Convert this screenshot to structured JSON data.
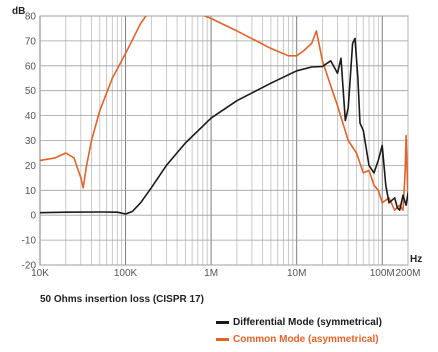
{
  "chart_data": {
    "type": "line",
    "title": "50 Ohms insertion loss (CISPR 17)",
    "ylabel": "dB",
    "xlabel": "Hz",
    "x_scale": "log",
    "xlim": [
      10000,
      200000000
    ],
    "ylim": [
      -20,
      80
    ],
    "y_ticks": [
      80,
      70,
      60,
      50,
      40,
      30,
      20,
      10,
      0,
      -10,
      -20
    ],
    "y_tick_labels": [
      "80",
      "70",
      "60",
      "50",
      "40",
      "30",
      "20",
      "10",
      "0",
      "-10",
      "-20"
    ],
    "x_ticks": [
      10000,
      100000,
      1000000,
      10000000,
      100000000,
      200000000
    ],
    "x_tick_labels": [
      "10K",
      "100K",
      "1M",
      "10M",
      "100M",
      "200M"
    ],
    "grid": true,
    "legend_position": "bottom-right",
    "series": [
      {
        "name": "Differential Mode (symmetrical)",
        "color": "#1a1a1a",
        "x": [
          10000,
          20000,
          50000,
          80000,
          100000,
          120000,
          150000,
          200000,
          300000,
          500000,
          1000000,
          2000000,
          5000000,
          10000000,
          15000000,
          20000000,
          25000000,
          30000000,
          33000000,
          37000000,
          40000000,
          45000000,
          48000000,
          52000000,
          55000000,
          60000000,
          70000000,
          80000000,
          90000000,
          100000000,
          110000000,
          120000000,
          140000000,
          150000000,
          160000000,
          175000000,
          190000000,
          200000000
        ],
        "values": [
          1,
          1.2,
          1.3,
          1.2,
          0.5,
          1.5,
          5,
          11,
          20,
          29,
          39,
          46,
          53,
          58,
          59.5,
          59.7,
          62,
          57,
          63,
          38,
          43,
          69,
          71,
          55,
          37,
          34,
          20,
          17,
          22,
          28,
          12,
          5,
          7,
          3,
          2,
          8,
          4,
          9
        ]
      },
      {
        "name": "Common Mode (asymmetrical)",
        "color": "#e0642a",
        "x": [
          10000,
          15000,
          20000,
          25000,
          30000,
          32000,
          35000,
          40000,
          50000,
          70000,
          100000,
          150000,
          200000,
          230000,
          1000000,
          2000000,
          5000000,
          8000000,
          10000000,
          12000000,
          15000000,
          17000000,
          20000000,
          25000000,
          30000000,
          40000000,
          50000000,
          60000000,
          70000000,
          80000000,
          90000000,
          100000000,
          120000000,
          140000000,
          160000000,
          175000000,
          185000000,
          190000000,
          200000000
        ],
        "values": [
          22,
          23,
          25,
          23,
          15,
          11,
          20,
          30,
          42,
          55,
          65,
          77,
          83,
          88,
          79,
          74,
          67,
          64,
          64,
          66,
          69,
          74,
          62,
          52,
          44,
          30,
          25,
          17,
          18,
          12,
          10,
          5,
          7,
          2,
          4,
          2,
          17,
          32,
          6
        ]
      }
    ]
  }
}
